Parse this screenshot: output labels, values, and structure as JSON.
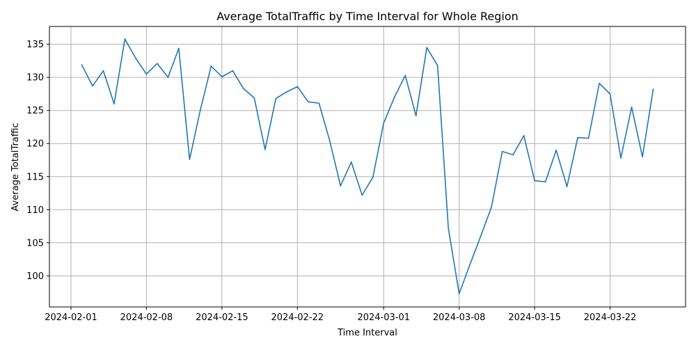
{
  "chart_data": {
    "type": "line",
    "title": "Average TotalTraffic by Time Interval for Whole Region",
    "xlabel": "Time Interval",
    "ylabel": "Average TotalTraffic",
    "grid": true,
    "legend": "none",
    "xlim": [
      "2024-01-30",
      "2024-03-29"
    ],
    "ylim": [
      95.3,
      137.7
    ],
    "x_ticks": [
      "2024-02-01",
      "2024-02-08",
      "2024-02-15",
      "2024-02-22",
      "2024-03-01",
      "2024-03-08",
      "2024-03-15",
      "2024-03-22"
    ],
    "y_ticks": [
      100,
      105,
      110,
      115,
      120,
      125,
      130,
      135
    ],
    "series": [
      {
        "color": "#1f77b4",
        "x": [
          "2024-02-02",
          "2024-02-03",
          "2024-02-04",
          "2024-02-05",
          "2024-02-06",
          "2024-02-07",
          "2024-02-08",
          "2024-02-09",
          "2024-02-10",
          "2024-02-11",
          "2024-02-12",
          "2024-02-13",
          "2024-02-14",
          "2024-02-15",
          "2024-02-16",
          "2024-02-17",
          "2024-02-18",
          "2024-02-19",
          "2024-02-20",
          "2024-02-21",
          "2024-02-22",
          "2024-02-23",
          "2024-02-24",
          "2024-02-25",
          "2024-02-26",
          "2024-02-27",
          "2024-02-28",
          "2024-02-29",
          "2024-03-01",
          "2024-03-02",
          "2024-03-03",
          "2024-03-04",
          "2024-03-05",
          "2024-03-06",
          "2024-03-07",
          "2024-03-08",
          "2024-03-09",
          "2024-03-10",
          "2024-03-11",
          "2024-03-12",
          "2024-03-13",
          "2024-03-14",
          "2024-03-15",
          "2024-03-16",
          "2024-03-17",
          "2024-03-18",
          "2024-03-19",
          "2024-03-20",
          "2024-03-21",
          "2024-03-22",
          "2024-03-23",
          "2024-03-24",
          "2024-03-25",
          "2024-03-26"
        ],
        "values": [
          131.9,
          128.7,
          131.0,
          126.0,
          135.8,
          132.9,
          130.5,
          132.1,
          130.0,
          134.4,
          117.6,
          125.1,
          131.7,
          130.1,
          131.0,
          128.3,
          126.9,
          119.1,
          126.8,
          127.8,
          128.6,
          126.3,
          126.1,
          120.4,
          113.6,
          117.2,
          112.2,
          114.9,
          123.1,
          127.0,
          130.3,
          124.2,
          134.5,
          131.8,
          107.2,
          97.3,
          101.7,
          106.0,
          110.4,
          118.8,
          118.3,
          121.2,
          114.4,
          114.2,
          119.0,
          113.5,
          120.9,
          120.8,
          129.1,
          127.5,
          117.8,
          125.5,
          118.0,
          128.2
        ]
      }
    ]
  }
}
